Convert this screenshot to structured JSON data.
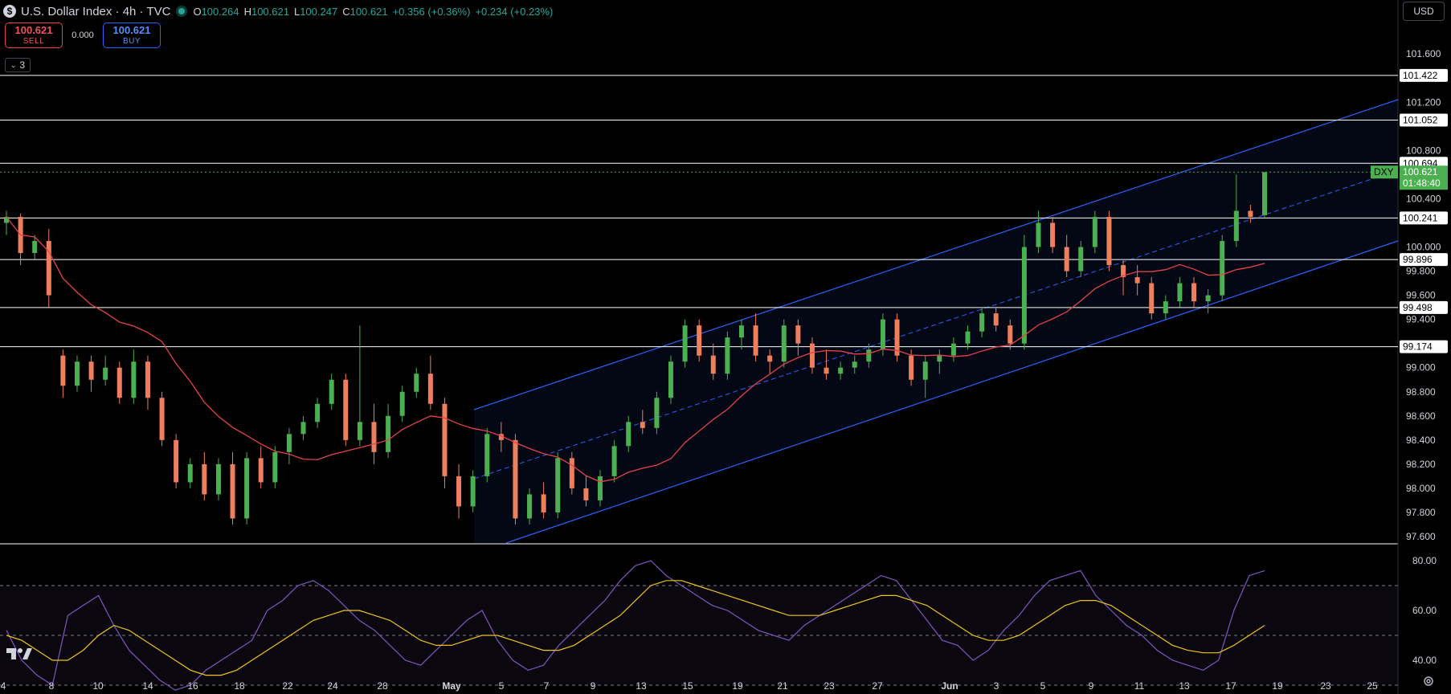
{
  "header": {
    "symbol_icon_letter": "$",
    "title": "U.S. Dollar Index · 4h · TVC",
    "ohlc": {
      "o_key": "O",
      "o": "100.264",
      "h_key": "H",
      "h": "100.621",
      "l_key": "L",
      "l": "100.247",
      "c_key": "C",
      "c": "100.621",
      "change": "+0.356 (+0.36%)",
      "change2": "+0.234 (+0.23%)"
    }
  },
  "trade": {
    "sell_price": "100.621",
    "sell_label": "SELL",
    "spread": "0.000",
    "buy_price": "100.621",
    "buy_label": "BUY"
  },
  "indicators_count": "3",
  "currency": "USD",
  "colors": {
    "up": "#4caf50",
    "down": "#ef7e5c",
    "ma": "#e5424a",
    "channel": "#2962ff",
    "rsi": "#7e57c2",
    "rsi_ma": "#f0c419",
    "price_label": "#4caf50"
  },
  "chart_data": [
    {
      "type": "candlestick",
      "symbol_badge": "DXY",
      "last_price": "100.621",
      "countdown": "01:48:40",
      "y_ticks": [
        "101.600",
        "101.200",
        "100.800",
        "100.400",
        "100.000",
        "99.800",
        "99.600",
        "99.400",
        "99.000",
        "98.800",
        "98.600",
        "98.400",
        "98.200",
        "98.000",
        "97.800",
        "97.600"
      ],
      "ylim": [
        97.6,
        101.7
      ],
      "x_ticks": [
        "4",
        "8",
        "10",
        "14",
        "16",
        "18",
        "22",
        "24",
        "28",
        "May",
        "5",
        "7",
        "9",
        "13",
        "15",
        "19",
        "21",
        "23",
        "27",
        "Jun",
        "3",
        "5",
        "9",
        "11",
        "13",
        "17",
        "19",
        "23",
        "25"
      ],
      "horizontal_levels": [
        "101.422",
        "101.052",
        "100.694",
        "100.241",
        "99.896",
        "99.498",
        "99.174"
      ],
      "channel": {
        "upper": [
          {
            "date": "Apr 30",
            "y": 98.6
          },
          {
            "date": "Jun 20",
            "y": 101.0
          }
        ],
        "lower": [
          {
            "date": "May 4",
            "y": 97.6
          },
          {
            "date": "Jun 20",
            "y": 99.95
          }
        ]
      },
      "series": [
        {
          "type": "candles",
          "points": [
            [
              100.2,
              100.3,
              100.1,
              100.25
            ],
            [
              100.25,
              100.28,
              99.85,
              99.95
            ],
            [
              99.95,
              100.1,
              99.9,
              100.05
            ],
            [
              100.05,
              100.15,
              99.5,
              99.6
            ],
            [
              99.1,
              99.15,
              98.75,
              98.85
            ],
            [
              98.85,
              99.1,
              98.8,
              99.05
            ],
            [
              99.05,
              99.1,
              98.8,
              98.9
            ],
            [
              98.9,
              99.1,
              98.85,
              99.0
            ],
            [
              99.0,
              99.05,
              98.7,
              98.75
            ],
            [
              98.75,
              99.15,
              98.7,
              99.05
            ],
            [
              99.05,
              99.1,
              98.65,
              98.75
            ],
            [
              98.75,
              98.8,
              98.35,
              98.4
            ],
            [
              98.4,
              98.45,
              98.0,
              98.05
            ],
            [
              98.05,
              98.25,
              98.0,
              98.2
            ],
            [
              98.2,
              98.3,
              97.9,
              97.95
            ],
            [
              97.95,
              98.25,
              97.9,
              98.2
            ],
            [
              98.2,
              98.3,
              97.7,
              97.75
            ],
            [
              97.75,
              98.3,
              97.7,
              98.25
            ],
            [
              98.25,
              98.35,
              98.0,
              98.05
            ],
            [
              98.05,
              98.35,
              98.0,
              98.3
            ],
            [
              98.3,
              98.5,
              98.2,
              98.45
            ],
            [
              98.45,
              98.6,
              98.4,
              98.55
            ],
            [
              98.55,
              98.75,
              98.5,
              98.7
            ],
            [
              98.7,
              98.95,
              98.65,
              98.9
            ],
            [
              98.9,
              98.95,
              98.35,
              98.4
            ],
            [
              98.4,
              99.35,
              98.35,
              98.55
            ],
            [
              98.55,
              98.7,
              98.2,
              98.3
            ],
            [
              98.3,
              98.7,
              98.25,
              98.6
            ],
            [
              98.6,
              98.85,
              98.55,
              98.8
            ],
            [
              98.8,
              99.0,
              98.75,
              98.95
            ],
            [
              98.95,
              99.1,
              98.65,
              98.7
            ],
            [
              98.7,
              98.75,
              98.0,
              98.1
            ],
            [
              98.1,
              98.2,
              97.75,
              97.85
            ],
            [
              97.85,
              98.15,
              97.8,
              98.1
            ],
            [
              98.1,
              98.5,
              98.05,
              98.45
            ],
            [
              98.45,
              98.55,
              98.3,
              98.4
            ],
            [
              98.4,
              98.45,
              97.7,
              97.75
            ],
            [
              97.75,
              98.0,
              97.7,
              97.95
            ],
            [
              97.95,
              98.05,
              97.75,
              97.8
            ],
            [
              97.8,
              98.3,
              97.75,
              98.25
            ],
            [
              98.25,
              98.3,
              97.95,
              98.0
            ],
            [
              98.0,
              98.1,
              97.85,
              97.9
            ],
            [
              97.9,
              98.15,
              97.85,
              98.1
            ],
            [
              98.1,
              98.4,
              98.05,
              98.35
            ],
            [
              98.35,
              98.6,
              98.3,
              98.55
            ],
            [
              98.55,
              98.65,
              98.45,
              98.5
            ],
            [
              98.5,
              98.8,
              98.45,
              98.75
            ],
            [
              98.75,
              99.1,
              98.7,
              99.05
            ],
            [
              99.05,
              99.4,
              99.0,
              99.35
            ],
            [
              99.35,
              99.4,
              99.05,
              99.1
            ],
            [
              99.1,
              99.2,
              98.9,
              98.95
            ],
            [
              98.95,
              99.3,
              98.9,
              99.25
            ],
            [
              99.25,
              99.4,
              99.15,
              99.35
            ],
            [
              99.35,
              99.45,
              99.05,
              99.1
            ],
            [
              99.1,
              99.15,
              98.95,
              99.05
            ],
            [
              99.05,
              99.4,
              99.0,
              99.35
            ],
            [
              99.35,
              99.4,
              99.1,
              99.2
            ],
            [
              99.2,
              99.25,
              98.95,
              99.0
            ],
            [
              99.0,
              99.15,
              98.9,
              98.95
            ],
            [
              98.95,
              99.05,
              98.9,
              99.0
            ],
            [
              99.0,
              99.1,
              98.95,
              99.05
            ],
            [
              99.05,
              99.2,
              99.0,
              99.15
            ],
            [
              99.15,
              99.45,
              99.1,
              99.4
            ],
            [
              99.4,
              99.45,
              99.05,
              99.1
            ],
            [
              99.1,
              99.15,
              98.85,
              98.9
            ],
            [
              98.9,
              99.1,
              98.75,
              99.05
            ],
            [
              99.05,
              99.15,
              98.95,
              99.1
            ],
            [
              99.1,
              99.25,
              99.05,
              99.2
            ],
            [
              99.2,
              99.35,
              99.15,
              99.3
            ],
            [
              99.3,
              99.5,
              99.25,
              99.45
            ],
            [
              99.45,
              99.5,
              99.3,
              99.35
            ],
            [
              99.35,
              99.4,
              99.15,
              99.2
            ],
            [
              99.2,
              100.1,
              99.15,
              100.0
            ],
            [
              100.0,
              100.3,
              99.95,
              100.2
            ],
            [
              100.2,
              100.25,
              99.95,
              100.0
            ],
            [
              100.0,
              100.1,
              99.75,
              99.8
            ],
            [
              99.8,
              100.05,
              99.75,
              100.0
            ],
            [
              100.0,
              100.3,
              99.95,
              100.25
            ],
            [
              100.25,
              100.3,
              99.8,
              99.85
            ],
            [
              99.85,
              99.9,
              99.6,
              99.75
            ],
            [
              99.75,
              99.85,
              99.6,
              99.7
            ],
            [
              99.7,
              99.75,
              99.4,
              99.45
            ],
            [
              99.45,
              99.6,
              99.4,
              99.55
            ],
            [
              99.55,
              99.75,
              99.5,
              99.7
            ],
            [
              99.7,
              99.75,
              99.5,
              99.55
            ],
            [
              99.55,
              99.65,
              99.45,
              99.6
            ],
            [
              99.6,
              100.1,
              99.55,
              100.05
            ],
            [
              100.05,
              100.6,
              100.0,
              100.3
            ],
            [
              100.3,
              100.35,
              100.2,
              100.25
            ],
            [
              100.264,
              100.621,
              100.247,
              100.621
            ]
          ]
        },
        {
          "type": "moving_average",
          "name": ""
        }
      ]
    },
    {
      "type": "line",
      "panel": "RSI",
      "y_ticks": [
        "80.00",
        "60.00",
        "40.00"
      ],
      "ylim": [
        28,
        82
      ],
      "levels": [
        70,
        50,
        30
      ],
      "series": [
        {
          "name": "",
          "values": [
            52,
            40,
            34,
            30,
            58,
            62,
            66,
            54,
            44,
            38,
            32,
            28,
            30,
            36,
            40,
            44,
            48,
            60,
            64,
            70,
            72,
            68,
            62,
            56,
            52,
            46,
            40,
            38,
            44,
            50,
            56,
            60,
            48,
            40,
            36,
            38,
            46,
            52,
            58,
            64,
            72,
            78,
            80,
            74,
            70,
            66,
            62,
            60,
            56,
            52,
            50,
            48,
            54,
            58,
            62,
            66,
            70,
            74,
            72,
            64,
            56,
            48,
            46,
            40,
            44,
            52,
            58,
            66,
            72,
            74,
            76,
            66,
            60,
            54,
            50,
            44,
            40,
            38,
            36,
            40,
            60,
            74,
            76
          ]
        },
        {
          "name": "",
          "values": [
            50,
            48,
            44,
            40,
            40,
            44,
            50,
            54,
            52,
            48,
            44,
            40,
            36,
            34,
            34,
            36,
            40,
            44,
            48,
            52,
            56,
            58,
            60,
            60,
            58,
            56,
            52,
            48,
            46,
            46,
            48,
            50,
            50,
            48,
            46,
            44,
            44,
            46,
            50,
            54,
            58,
            64,
            70,
            72,
            72,
            70,
            68,
            66,
            64,
            62,
            60,
            58,
            58,
            58,
            60,
            62,
            64,
            66,
            66,
            64,
            62,
            58,
            54,
            50,
            48,
            48,
            50,
            54,
            58,
            62,
            64,
            64,
            62,
            58,
            54,
            50,
            46,
            44,
            43,
            43,
            46,
            50,
            54
          ]
        }
      ]
    }
  ]
}
